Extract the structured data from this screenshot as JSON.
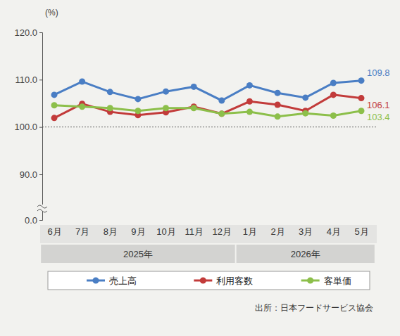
{
  "chart_data": {
    "type": "line",
    "y_label": "(%)",
    "categories": [
      "6月",
      "7月",
      "8月",
      "9月",
      "10月",
      "11月",
      "12月",
      "1月",
      "2月",
      "3月",
      "4月",
      "5月"
    ],
    "category_groups": [
      {
        "label": "2025年",
        "count": 7
      },
      {
        "label": "2026年",
        "count": 5
      }
    ],
    "series": [
      {
        "name": "売上高",
        "color": "#4a7ec4",
        "marker": "circle",
        "values": [
          106.8,
          109.6,
          107.4,
          105.9,
          107.5,
          108.5,
          105.6,
          108.8,
          107.2,
          106.2,
          109.3,
          109.8
        ],
        "value_labels": [
          null,
          null,
          null,
          null,
          null,
          null,
          null,
          null,
          null,
          null,
          null,
          "109.8"
        ]
      },
      {
        "name": "利用客数",
        "color": "#c23b3a",
        "marker": "circle",
        "values": [
          101.9,
          104.9,
          103.2,
          102.5,
          103.1,
          104.3,
          102.8,
          105.4,
          104.7,
          103.4,
          106.8,
          106.1
        ],
        "value_labels": [
          null,
          null,
          null,
          null,
          null,
          null,
          null,
          null,
          null,
          null,
          null,
          "106.1"
        ]
      },
      {
        "name": "客単価",
        "color": "#8cbf4a",
        "marker": "circle",
        "values": [
          104.6,
          104.3,
          104.0,
          103.4,
          104.0,
          104.0,
          102.8,
          103.2,
          102.2,
          102.9,
          102.4,
          103.4
        ],
        "value_labels": [
          null,
          null,
          null,
          null,
          null,
          null,
          null,
          null,
          null,
          null,
          null,
          "103.4"
        ]
      }
    ],
    "ylim": [
      0,
      120
    ],
    "yticks": [
      {
        "value": 0,
        "label": "0.0"
      },
      {
        "value": 90,
        "label": "90.0"
      },
      {
        "value": 100,
        "label": "100.0"
      },
      {
        "value": 110,
        "label": "110.0"
      },
      {
        "value": 120,
        "label": "120.0"
      }
    ],
    "y_break": [
      0,
      90
    ],
    "baseline": 100,
    "legend": "bottom",
    "source": "出所：日本フードサービス協会"
  }
}
